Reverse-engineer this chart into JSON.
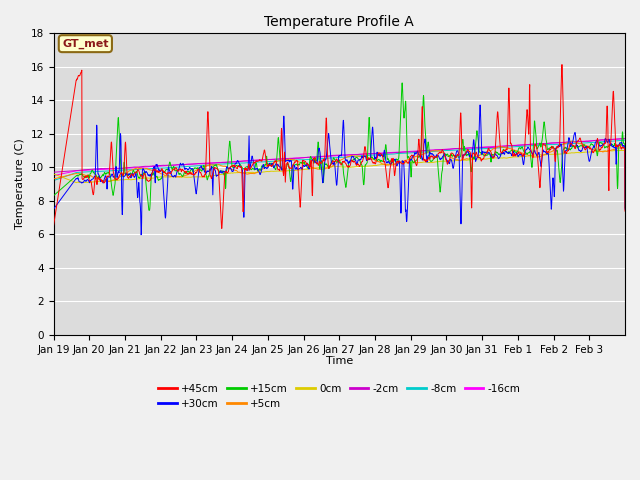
{
  "title": "Temperature Profile A",
  "xlabel": "Time",
  "ylabel": "Temperature (C)",
  "ylim": [
    0,
    18
  ],
  "yticks": [
    0,
    2,
    4,
    6,
    8,
    10,
    12,
    14,
    16,
    18
  ],
  "annotation_text": "GT_met",
  "annotation_box_color": "#ffffcc",
  "annotation_border_color": "#8b6914",
  "series_colors": {
    "+45cm": "#ff0000",
    "+30cm": "#0000ff",
    "+15cm": "#00cc00",
    "+5cm": "#ff8800",
    "0cm": "#ddcc00",
    "-2cm": "#cc00cc",
    "-8cm": "#00cccc",
    "-16cm": "#ff00ff"
  },
  "x_tick_labels": [
    "Jan 19",
    "Jan 20",
    "Jan 21",
    "Jan 22",
    "Jan 23",
    "Jan 24",
    "Jan 25",
    "Jan 26",
    "Jan 27",
    "Jan 28",
    "Jan 29",
    "Jan 30",
    "Jan 31",
    "Feb 1",
    "Feb 2",
    "Feb 3"
  ],
  "grid_color": "#ffffff",
  "grid_lw": 0.8,
  "bg_color": "#dcdcdc",
  "fig_bg_color": "#f0f0f0"
}
